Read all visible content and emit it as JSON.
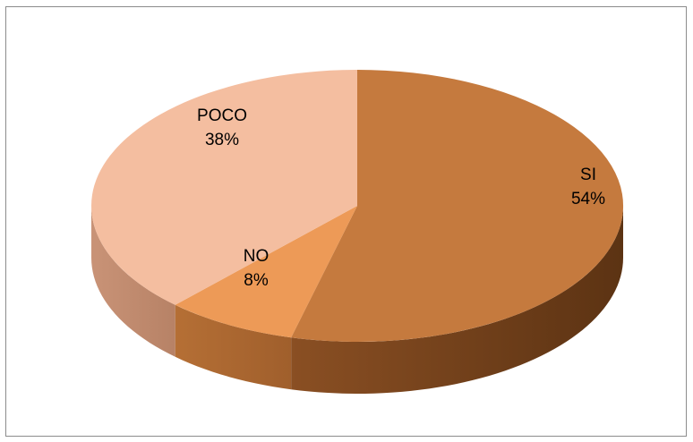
{
  "chart_data": {
    "type": "pie",
    "title": "",
    "style": "3d",
    "slices": [
      {
        "label": "SI",
        "value": 54,
        "value_label": "54%",
        "color": "#c57a3e"
      },
      {
        "label": "NO",
        "value": 8,
        "value_label": "8%",
        "color": "#ed9a57"
      },
      {
        "label": "POCO",
        "value": 38,
        "value_label": "38%",
        "color": "#f4bea0"
      }
    ]
  }
}
